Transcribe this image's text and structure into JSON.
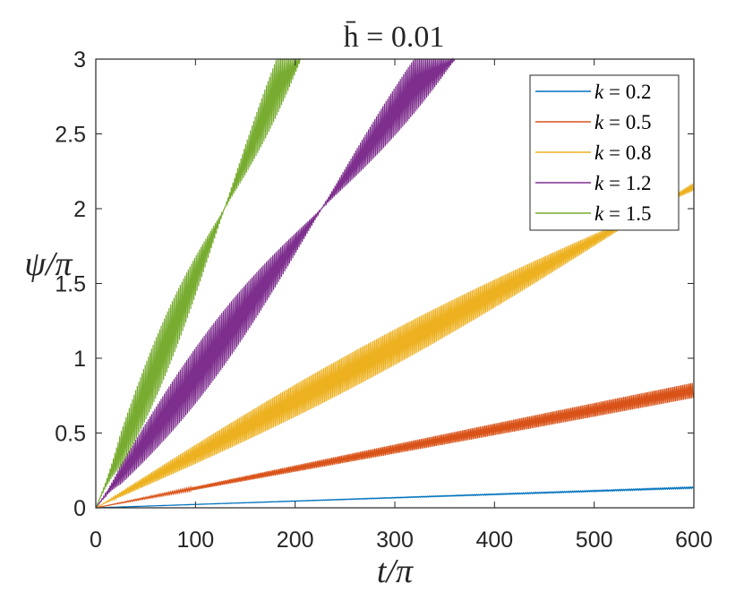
{
  "chart_data": {
    "type": "line",
    "title": "h̄ = 0.01",
    "xlabel": "t/π",
    "ylabel": "ψ/π",
    "xlim": [
      0,
      600
    ],
    "ylim": [
      0,
      3
    ],
    "xticks": [
      0,
      100,
      200,
      300,
      400,
      500,
      600
    ],
    "yticks": [
      0,
      0.5,
      1,
      1.5,
      2,
      2.5,
      3
    ],
    "xtick_labels": [
      "0",
      "100",
      "200",
      "300",
      "400",
      "500",
      "600"
    ],
    "ytick_labels": [
      "0",
      "0.5",
      "1",
      "1.5",
      "2",
      "2.5",
      "3"
    ],
    "legend_position": "top-right",
    "series": [
      {
        "name": "k = 0.2",
        "color": "#0072BD",
        "drift_rate": 0.000225,
        "band_amplitude": 0.01,
        "band_period": 4000
      },
      {
        "name": "k = 0.5",
        "color": "#D95319",
        "drift_rate": 0.00131,
        "band_amplitude": 0.055,
        "band_period": 1600
      },
      {
        "name": "k = 0.8",
        "color": "#EDB120",
        "drift_rate": 0.00358,
        "band_amplitude": 0.12,
        "band_period": 560
      },
      {
        "name": "k = 1.2",
        "color": "#7E2F8E",
        "drift_rate": 0.00883,
        "band_amplitude": 0.19,
        "band_period": 227
      },
      {
        "name": "k = 1.5",
        "color": "#77AC30",
        "drift_rate": 0.0155,
        "band_amplitude": 0.2,
        "band_period": 129
      }
    ]
  }
}
